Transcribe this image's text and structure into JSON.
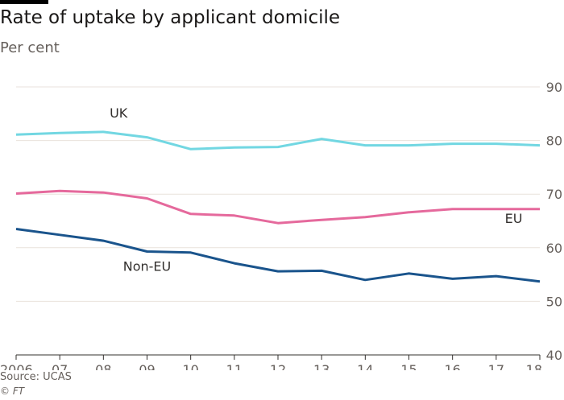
{
  "header": {
    "title": "Rate of uptake by applicant domicile",
    "subtitle": "Per cent"
  },
  "footer": {
    "source": "Source: UCAS",
    "copyright": "© FT"
  },
  "chart_data": {
    "type": "line",
    "title": "Rate of uptake by applicant domicile",
    "subtitle": "Per cent",
    "x": [
      2006,
      2007,
      2008,
      2009,
      2010,
      2011,
      2012,
      2013,
      2014,
      2015,
      2016,
      2017,
      2018
    ],
    "x_tick_labels": [
      "2006",
      "07",
      "08",
      "09",
      "10",
      "11",
      "12",
      "13",
      "14",
      "15",
      "16",
      "17",
      "18"
    ],
    "ylim": [
      40,
      90
    ],
    "y_ticks": [
      40,
      50,
      60,
      70,
      80,
      90
    ],
    "grid": "horizontal",
    "y_axis_side": "right",
    "series": [
      {
        "name": "UK",
        "color": "#72d7e2",
        "values": [
          81.1,
          81.4,
          81.6,
          80.6,
          78.4,
          78.7,
          78.8,
          80.3,
          79.1,
          79.1,
          79.4,
          79.4,
          79.1
        ]
      },
      {
        "name": "EU",
        "color": "#e5699c",
        "values": [
          70.1,
          70.6,
          70.3,
          69.2,
          66.3,
          66.0,
          64.6,
          65.2,
          65.7,
          66.6,
          67.2,
          67.2,
          67.2
        ]
      },
      {
        "name": "Non-EU",
        "color": "#1a548c",
        "values": [
          63.5,
          62.4,
          61.3,
          59.3,
          59.1,
          57.1,
          55.6,
          55.7,
          54.0,
          55.2,
          54.2,
          54.7,
          53.7
        ]
      }
    ]
  }
}
